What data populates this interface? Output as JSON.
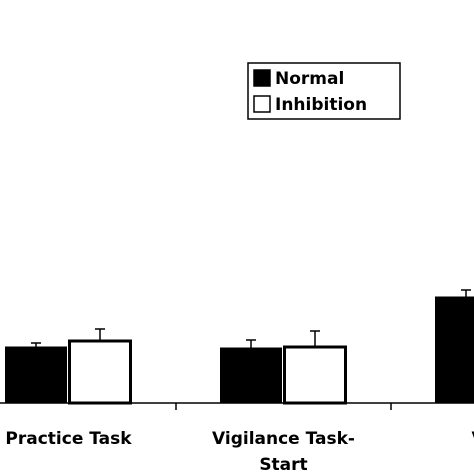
{
  "chart_data": {
    "type": "bar",
    "categories": [
      [
        "Practice Task"
      ],
      [
        "Vigilance Task-",
        "Start"
      ],
      [
        "Vigila"
      ]
    ],
    "series": [
      {
        "name": "Normal",
        "color": "#000000",
        "values": [
          56,
          55,
          106
        ],
        "errors": [
          4,
          8,
          7
        ]
      },
      {
        "name": "Inhibition",
        "color": "#ffffff",
        "values": [
          62,
          56,
          null
        ],
        "errors": [
          12,
          16,
          null
        ]
      }
    ],
    "legend": "top-right"
  }
}
